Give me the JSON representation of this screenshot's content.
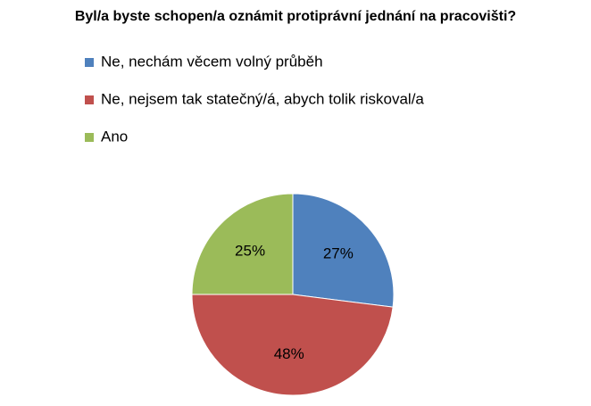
{
  "chart_data": {
    "type": "pie",
    "title": "Byl/a byste schopen/a oznámit protiprávní jednání na pracovišti?",
    "categories": [
      "Ne, nechám věcem volný průběh",
      "Ne, nejsem tak statečný/á, abych tolik riskoval/a",
      "Ano"
    ],
    "values": [
      27,
      48,
      25
    ],
    "value_labels": [
      "27%",
      "48%",
      "25%"
    ],
    "colors": [
      "#4f81bd",
      "#c0504d",
      "#9bbb59"
    ],
    "legend": "top"
  }
}
